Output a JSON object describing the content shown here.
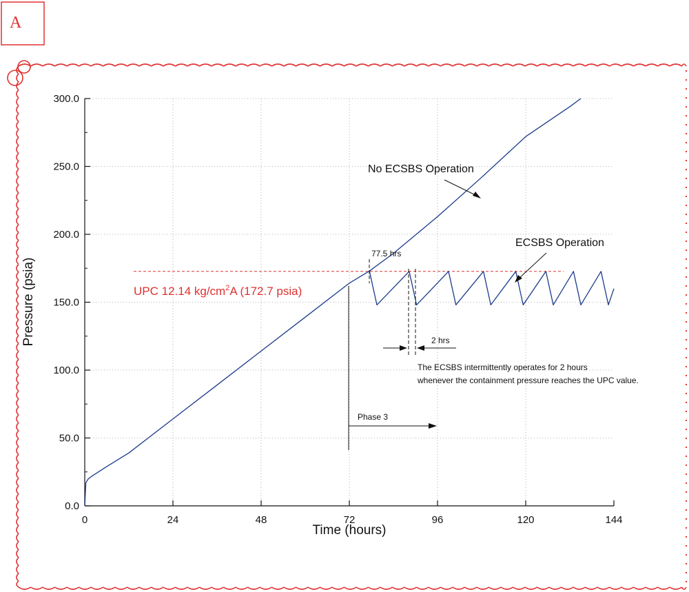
{
  "panel_label": "A",
  "colors": {
    "frame": "#e03030",
    "curve": "#1a3a8a",
    "upc_line": "#e03030",
    "grid": "#9a9a9a",
    "text": "#111111"
  },
  "chart_data": {
    "type": "line",
    "title": "",
    "xlabel": "Time (hours)",
    "ylabel": "Pressure (psia)",
    "xlim": [
      0,
      144
    ],
    "ylim": [
      0,
      300
    ],
    "x_ticks": [
      0,
      24,
      48,
      72,
      96,
      120,
      144
    ],
    "x_tick_labels": [
      "0",
      "24",
      "48",
      "72",
      "96",
      "120",
      "144"
    ],
    "y_ticks": [
      0,
      50,
      100,
      150,
      200,
      250,
      300
    ],
    "y_tick_labels": [
      "0.0",
      "50.0",
      "100.0",
      "150.0",
      "200.0",
      "250.0",
      "300.0"
    ],
    "grid": true,
    "series": [
      {
        "name": "No ECSBS Operation",
        "x": [
          0,
          0.3,
          1,
          2,
          6,
          12,
          24,
          36,
          48,
          60,
          72,
          77.5,
          84,
          96,
          108,
          120,
          132,
          135
        ],
        "y": [
          0,
          17,
          20,
          22,
          29,
          39,
          64,
          89,
          114,
          139,
          164,
          173,
          186,
          213,
          242,
          272,
          294,
          300
        ]
      },
      {
        "name": "ECSBS Operation",
        "x": [
          77.5,
          79.5,
          88.3,
          90.3,
          99,
          101,
          108.5,
          110.5,
          117.3,
          119.3,
          125.5,
          127.5,
          133,
          135,
          140.5,
          142.5,
          144
        ],
        "y": [
          172.7,
          148,
          172.7,
          148,
          172.7,
          148,
          172.7,
          148,
          172.7,
          148,
          172.7,
          148,
          172.7,
          148,
          172.7,
          148,
          160
        ]
      }
    ],
    "annotations": {
      "upc_label_main": "UPC 12.14 kg/cm",
      "upc_label_sup": "2",
      "upc_label_tail": "A (172.7 psia)",
      "upc_value": 172.7,
      "no_ecsbs": "No ECSBS Operation",
      "ecsbs": "ECSBS Operation",
      "hrs_775": "77.5 hrs",
      "two_hrs": "2 hrs",
      "note_line1": "The ECSBS intermittently operates for 2 hours",
      "note_line2": "whenever the containment pressure reaches the UPC value.",
      "phase3": "Phase 3"
    }
  }
}
